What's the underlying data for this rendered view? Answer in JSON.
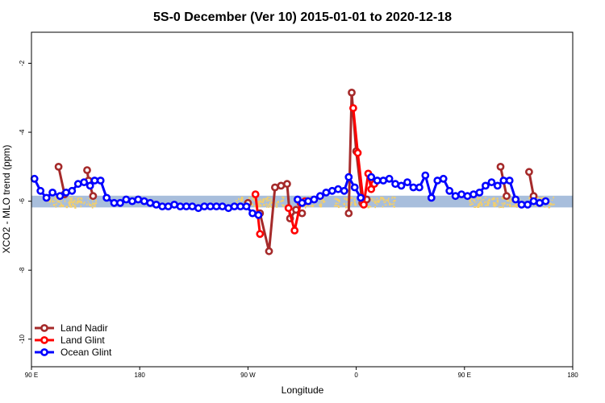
{
  "chart_data": {
    "type": "line",
    "title": "5S-0 December (Ver 10)   2015-01-01 to 2020-12-18",
    "xlabel": "Longitude",
    "ylabel": "XCO2 - MLO trend (ppm)",
    "xlim": [
      90,
      450
    ],
    "ylim": [
      -10.8,
      -1.1
    ],
    "x_ticks": [
      {
        "value": 90,
        "label": "90 E"
      },
      {
        "value": 162,
        "label": "180"
      },
      {
        "value": 234,
        "label": "90 W"
      },
      {
        "value": 306,
        "label": "0"
      },
      {
        "value": 378,
        "label": "90 E"
      },
      {
        "value": 450,
        "label": "180"
      }
    ],
    "y_ticks": [
      {
        "value": -2,
        "label": "-2"
      },
      {
        "value": -4,
        "label": "-4"
      },
      {
        "value": -6,
        "label": "-6"
      },
      {
        "value": -8,
        "label": "-8"
      },
      {
        "value": -10,
        "label": "-10"
      }
    ],
    "band": {
      "y_min": -6.18,
      "y_max": -5.84,
      "color": "#a8bedc"
    },
    "land_mask_color": "#f4cf6a",
    "land_segments": [
      [
        100,
        134
      ],
      [
        225,
        258
      ],
      [
        269,
        284
      ],
      [
        291,
        305
      ],
      [
        311,
        331
      ],
      [
        381,
        414
      ],
      [
        420,
        437
      ]
    ],
    "legend": {
      "position": "bottom-left"
    },
    "series": [
      {
        "name": "Land Nadir",
        "color": "#a52a2a",
        "segments": [
          [
            [
              108,
              -5.0
            ],
            [
              112,
              -5.8
            ]
          ],
          [
            [
              127,
              -5.1
            ],
            [
              128,
              -5.4
            ],
            [
              131,
              -5.85
            ]
          ],
          [
            [
              234,
              -6.05
            ]
          ],
          [
            [
              242,
              -6.35
            ],
            [
              248,
              -7.45
            ],
            [
              252,
              -5.6
            ],
            [
              256,
              -5.55
            ],
            [
              260,
              -5.5
            ],
            [
              262,
              -6.5
            ],
            [
              266,
              -6.25
            ],
            [
              270,
              -6.35
            ]
          ],
          [
            [
              301,
              -6.35
            ],
            [
              303,
              -2.85
            ],
            [
              306,
              -4.55
            ],
            [
              310,
              -6.05
            ],
            [
              313,
              -5.95
            ]
          ],
          [
            [
              402,
              -5.0
            ],
            [
              406,
              -5.85
            ]
          ],
          [
            [
              421,
              -5.15
            ],
            [
              424,
              -5.85
            ]
          ]
        ]
      },
      {
        "name": "Land Glint",
        "color": "#ff0000",
        "segments": [
          [
            [
              239,
              -5.8
            ],
            [
              242,
              -6.95
            ]
          ],
          [
            [
              261,
              -6.2
            ],
            [
              265,
              -6.85
            ],
            [
              269,
              -6.05
            ],
            [
              272,
              -6.0
            ]
          ],
          [
            [
              304,
              -3.3
            ],
            [
              307,
              -4.6
            ],
            [
              311,
              -6.1
            ],
            [
              314,
              -5.2
            ],
            [
              316,
              -5.65
            ],
            [
              318,
              -5.5
            ]
          ]
        ]
      },
      {
        "name": "Ocean Glint",
        "color": "#0000ff",
        "segments": [
          [
            [
              92,
              -5.35
            ],
            [
              96,
              -5.7
            ],
            [
              100,
              -5.9
            ],
            [
              104,
              -5.75
            ],
            [
              109,
              -5.85
            ],
            [
              113,
              -5.75
            ],
            [
              117,
              -5.7
            ],
            [
              121,
              -5.5
            ],
            [
              125,
              -5.45
            ],
            [
              129,
              -5.55
            ],
            [
              132,
              -5.4
            ],
            [
              136,
              -5.4
            ],
            [
              140,
              -5.9
            ],
            [
              145,
              -6.05
            ],
            [
              149,
              -6.05
            ],
            [
              153,
              -5.95
            ],
            [
              157,
              -6.0
            ],
            [
              161,
              -5.95
            ],
            [
              165,
              -6.0
            ],
            [
              169,
              -6.05
            ],
            [
              173,
              -6.1
            ],
            [
              177,
              -6.15
            ],
            [
              181,
              -6.15
            ],
            [
              185,
              -6.1
            ],
            [
              189,
              -6.15
            ],
            [
              193,
              -6.15
            ],
            [
              197,
              -6.15
            ],
            [
              201,
              -6.2
            ],
            [
              205,
              -6.15
            ],
            [
              209,
              -6.15
            ],
            [
              213,
              -6.15
            ],
            [
              217,
              -6.15
            ],
            [
              221,
              -6.2
            ],
            [
              225,
              -6.15
            ],
            [
              229,
              -6.15
            ],
            [
              233,
              -6.15
            ],
            [
              237,
              -6.35
            ],
            [
              241,
              -6.4
            ]
          ],
          [
            [
              267,
              -5.95
            ],
            [
              270,
              -6.05
            ],
            [
              274,
              -6.0
            ],
            [
              278,
              -5.95
            ],
            [
              282,
              -5.85
            ],
            [
              286,
              -5.75
            ],
            [
              290,
              -5.7
            ],
            [
              294,
              -5.65
            ],
            [
              298,
              -5.7
            ],
            [
              301,
              -5.3
            ],
            [
              305,
              -5.6
            ],
            [
              309,
              -5.9
            ]
          ],
          [
            [
              316,
              -5.3
            ],
            [
              320,
              -5.4
            ],
            [
              324,
              -5.4
            ],
            [
              328,
              -5.35
            ],
            [
              332,
              -5.5
            ],
            [
              336,
              -5.55
            ],
            [
              340,
              -5.45
            ],
            [
              344,
              -5.6
            ],
            [
              348,
              -5.6
            ],
            [
              352,
              -5.25
            ],
            [
              356,
              -5.9
            ],
            [
              360,
              -5.4
            ],
            [
              364,
              -5.35
            ],
            [
              368,
              -5.7
            ],
            [
              372,
              -5.85
            ],
            [
              376,
              -5.8
            ],
            [
              380,
              -5.85
            ],
            [
              384,
              -5.8
            ],
            [
              388,
              -5.75
            ],
            [
              392,
              -5.55
            ],
            [
              396,
              -5.45
            ],
            [
              400,
              -5.55
            ],
            [
              404,
              -5.4
            ],
            [
              408,
              -5.4
            ],
            [
              412,
              -5.95
            ],
            [
              416,
              -6.1
            ],
            [
              420,
              -6.1
            ],
            [
              424,
              -6.0
            ],
            [
              428,
              -6.05
            ],
            [
              432,
              -6.0
            ]
          ]
        ]
      }
    ]
  }
}
